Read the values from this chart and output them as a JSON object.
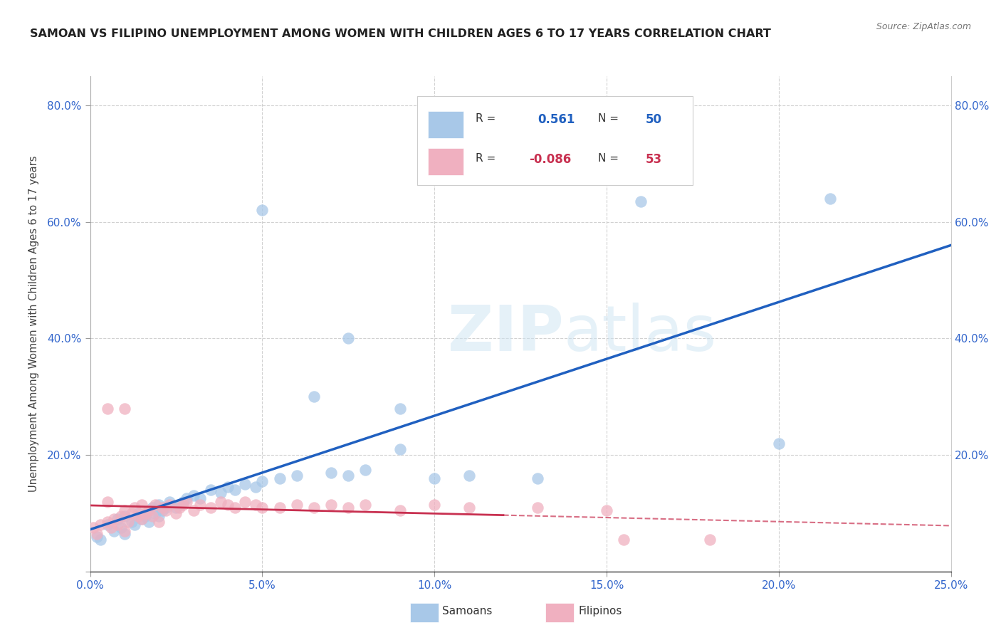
{
  "title": "SAMOAN VS FILIPINO UNEMPLOYMENT AMONG WOMEN WITH CHILDREN AGES 6 TO 17 YEARS CORRELATION CHART",
  "source": "Source: ZipAtlas.com",
  "ylabel": "Unemployment Among Women with Children Ages 6 to 17 years",
  "xlim": [
    0.0,
    0.25
  ],
  "ylim": [
    0.0,
    0.85
  ],
  "xticks": [
    0.0,
    0.05,
    0.1,
    0.15,
    0.2,
    0.25
  ],
  "yticks": [
    0.0,
    0.2,
    0.4,
    0.6,
    0.8
  ],
  "background_color": "#ffffff",
  "grid_color": "#cccccc",
  "samoan_color": "#a8c8e8",
  "filipino_color": "#f0b0c0",
  "samoan_line_color": "#2060c0",
  "filipino_line_color": "#c83050",
  "tick_color": "#3366cc",
  "R_samoan": 0.561,
  "N_samoan": 50,
  "R_filipino": -0.086,
  "N_filipino": 53,
  "samoan_x": [
    0.002,
    0.003,
    0.005,
    0.007,
    0.008,
    0.009,
    0.01,
    0.01,
    0.012,
    0.013,
    0.014,
    0.015,
    0.016,
    0.017,
    0.018,
    0.019,
    0.02,
    0.02,
    0.021,
    0.022,
    0.023,
    0.025,
    0.026,
    0.027,
    0.028,
    0.03,
    0.032,
    0.035,
    0.038,
    0.04,
    0.042,
    0.045,
    0.048,
    0.05,
    0.055,
    0.06,
    0.065,
    0.07,
    0.075,
    0.08,
    0.09,
    0.1,
    0.11,
    0.13,
    0.05,
    0.075,
    0.16,
    0.2,
    0.215,
    0.09
  ],
  "samoan_y": [
    0.06,
    0.055,
    0.08,
    0.07,
    0.09,
    0.075,
    0.065,
    0.095,
    0.085,
    0.08,
    0.1,
    0.09,
    0.095,
    0.085,
    0.11,
    0.1,
    0.095,
    0.115,
    0.105,
    0.11,
    0.12,
    0.11,
    0.115,
    0.12,
    0.125,
    0.13,
    0.125,
    0.14,
    0.135,
    0.145,
    0.14,
    0.15,
    0.145,
    0.155,
    0.16,
    0.165,
    0.3,
    0.17,
    0.165,
    0.175,
    0.21,
    0.16,
    0.165,
    0.16,
    0.62,
    0.4,
    0.635,
    0.22,
    0.64,
    0.28
  ],
  "filipino_x": [
    0.001,
    0.002,
    0.003,
    0.005,
    0.005,
    0.006,
    0.007,
    0.008,
    0.009,
    0.01,
    0.01,
    0.011,
    0.012,
    0.013,
    0.014,
    0.015,
    0.015,
    0.016,
    0.017,
    0.018,
    0.019,
    0.02,
    0.021,
    0.022,
    0.023,
    0.025,
    0.026,
    0.027,
    0.028,
    0.03,
    0.032,
    0.035,
    0.038,
    0.04,
    0.042,
    0.045,
    0.048,
    0.05,
    0.055,
    0.06,
    0.065,
    0.07,
    0.075,
    0.08,
    0.09,
    0.1,
    0.11,
    0.13,
    0.15,
    0.18,
    0.005,
    0.01,
    0.155
  ],
  "filipino_y": [
    0.075,
    0.065,
    0.08,
    0.085,
    0.12,
    0.075,
    0.09,
    0.08,
    0.095,
    0.07,
    0.105,
    0.085,
    0.1,
    0.11,
    0.095,
    0.09,
    0.115,
    0.1,
    0.105,
    0.095,
    0.115,
    0.085,
    0.11,
    0.105,
    0.115,
    0.1,
    0.11,
    0.115,
    0.12,
    0.105,
    0.115,
    0.11,
    0.12,
    0.115,
    0.11,
    0.12,
    0.115,
    0.11,
    0.11,
    0.115,
    0.11,
    0.115,
    0.11,
    0.115,
    0.105,
    0.115,
    0.11,
    0.11,
    0.105,
    0.055,
    0.28,
    0.28,
    0.055
  ]
}
